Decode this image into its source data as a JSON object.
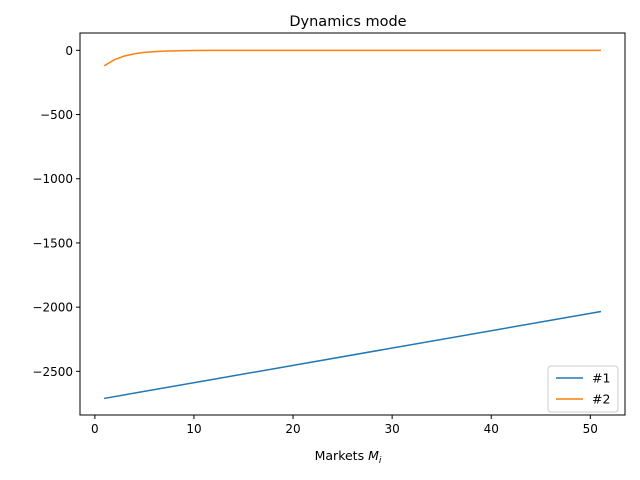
{
  "chart_data": {
    "type": "line",
    "title": "Dynamics mode",
    "xlabel": "Markets ",
    "xlabel_math": "M",
    "xlabel_sub": "i",
    "ylabel": "",
    "xlim": [
      -1.5,
      53.5
    ],
    "ylim": [
      -2840,
      135
    ],
    "xticks": [
      0,
      10,
      20,
      30,
      40,
      50
    ],
    "yticks": [
      0,
      -500,
      -1000,
      -1500,
      -2000,
      -2500
    ],
    "ytick_labels": [
      "0",
      "−500",
      "−1000",
      "−1500",
      "−2000",
      "−2500"
    ],
    "grid": false,
    "legend_position": "lower-right",
    "series": [
      {
        "name": "#1",
        "color": "#1f77b4",
        "x": [
          1,
          51
        ],
        "y": [
          -2710,
          -2035
        ]
      },
      {
        "name": "#2",
        "color": "#ff7f0e",
        "x": [
          1,
          2,
          3,
          4,
          5,
          6,
          7,
          8,
          9,
          10,
          12,
          15,
          20,
          30,
          40,
          51
        ],
        "y": [
          -118,
          -72,
          -44,
          -27,
          -16,
          -10,
          -6,
          -4,
          -2,
          -1,
          -0.5,
          -0.2,
          0,
          0,
          0,
          0
        ]
      }
    ]
  }
}
